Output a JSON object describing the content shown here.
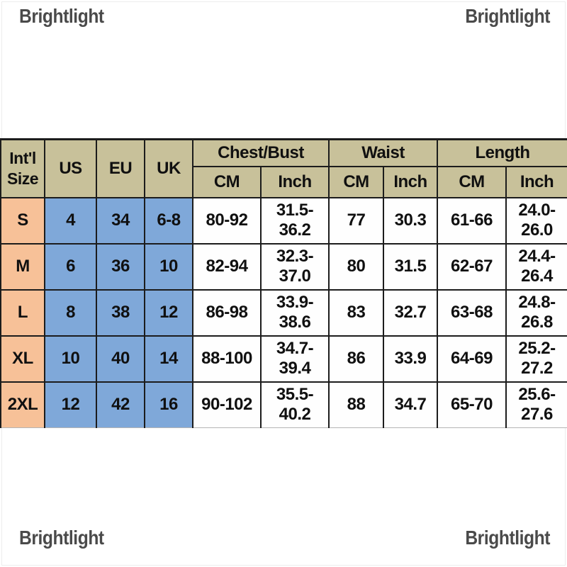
{
  "watermark": {
    "text": "Brightlight"
  },
  "colors": {
    "header_bg": "#c8c19a",
    "size_col_bg": "#f7c198",
    "intl_cols_bg": "#7fa8d9",
    "border_color": "#1c1c1c",
    "watermark_color": "#4a4a4a"
  },
  "table": {
    "header": {
      "intl_line1": "Int'l",
      "intl_line2": "Size",
      "us": "US",
      "eu": "EU",
      "uk": "UK",
      "chest_group": "Chest/Bust",
      "waist_group": "Waist",
      "length_group": "Length",
      "cm": "CM",
      "inch": "Inch"
    },
    "rows": [
      {
        "size": "S",
        "us": "4",
        "eu": "34",
        "uk": "6-8",
        "chest_cm": "80-92",
        "chest_inch": "31.5-36.2",
        "waist_cm": "77",
        "waist_inch": "30.3",
        "length_cm": "61-66",
        "length_inch": "24.0-26.0"
      },
      {
        "size": "M",
        "us": "6",
        "eu": "36",
        "uk": "10",
        "chest_cm": "82-94",
        "chest_inch": "32.3-37.0",
        "waist_cm": "80",
        "waist_inch": "31.5",
        "length_cm": "62-67",
        "length_inch": "24.4-26.4"
      },
      {
        "size": "L",
        "us": "8",
        "eu": "38",
        "uk": "12",
        "chest_cm": "86-98",
        "chest_inch": "33.9-38.6",
        "waist_cm": "83",
        "waist_inch": "32.7",
        "length_cm": "63-68",
        "length_inch": "24.8-26.8"
      },
      {
        "size": "XL",
        "us": "10",
        "eu": "40",
        "uk": "14",
        "chest_cm": "88-100",
        "chest_inch": "34.7-39.4",
        "waist_cm": "86",
        "waist_inch": "33.9",
        "length_cm": "64-69",
        "length_inch": "25.2-27.2"
      },
      {
        "size": "2XL",
        "us": "12",
        "eu": "42",
        "uk": "16",
        "chest_cm": "90-102",
        "chest_inch": "35.5-40.2",
        "waist_cm": "88",
        "waist_inch": "34.7",
        "length_cm": "65-70",
        "length_inch": "25.6-27.6"
      }
    ]
  }
}
